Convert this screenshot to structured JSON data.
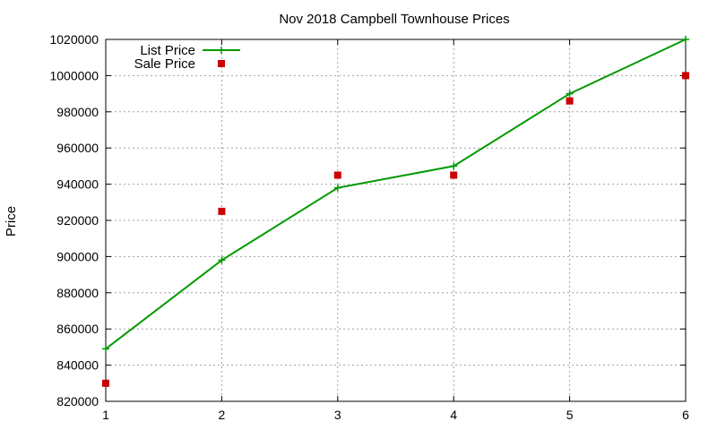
{
  "chart_data": {
    "type": "line",
    "title": "Nov 2018 Campbell Townhouse Prices",
    "xlabel": "",
    "ylabel": "Price",
    "x": [
      1,
      2,
      3,
      4,
      5,
      6
    ],
    "xlim": [
      1,
      6
    ],
    "ylim": [
      820000,
      1020000
    ],
    "xticks": [
      "1",
      "2",
      "3",
      "4",
      "5",
      "6"
    ],
    "yticks": [
      "820000",
      "840000",
      "860000",
      "880000",
      "900000",
      "920000",
      "940000",
      "960000",
      "980000",
      "1000000",
      "1020000"
    ],
    "grid": true,
    "legend_position": "top-left",
    "series": [
      {
        "name": "List Price",
        "style": "line-points",
        "marker": "plus",
        "color": "#009900",
        "values": [
          849000,
          898000,
          938000,
          950000,
          990000,
          1020000
        ]
      },
      {
        "name": "Sale Price",
        "style": "points",
        "marker": "square",
        "color": "#cc0000",
        "values": [
          830000,
          925000,
          945000,
          945000,
          986000,
          1000000
        ]
      }
    ]
  }
}
